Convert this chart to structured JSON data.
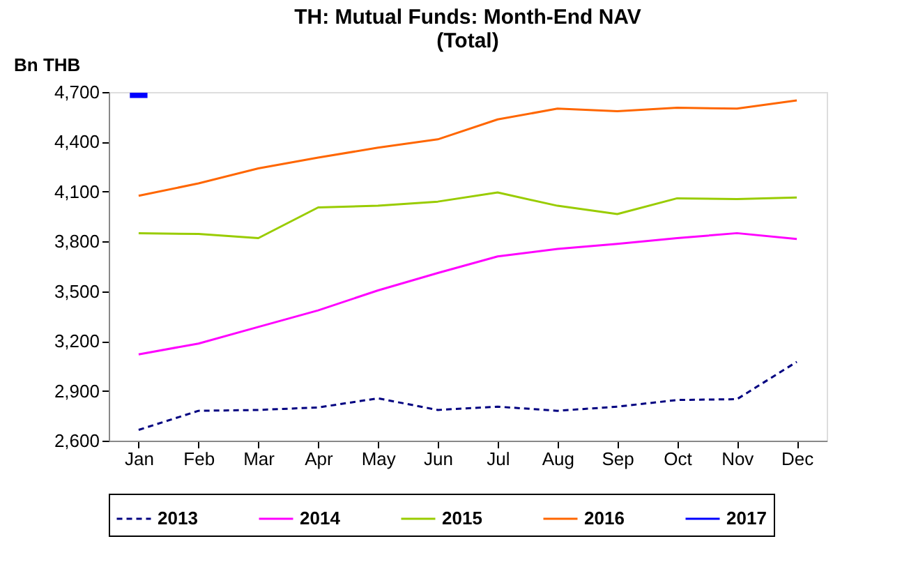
{
  "chart_data": {
    "type": "line",
    "title": [
      "TH: Mutual Funds: Month-End NAV",
      "(Total)"
    ],
    "ylabel": "Bn THB",
    "categories": [
      "Jan",
      "Feb",
      "Mar",
      "Apr",
      "May",
      "Jun",
      "Jul",
      "Aug",
      "Sep",
      "Oct",
      "Nov",
      "Dec"
    ],
    "ylim": [
      2600,
      4700
    ],
    "yticks": [
      {
        "value": 2600,
        "label": "2,600"
      },
      {
        "value": 2900,
        "label": "2,900"
      },
      {
        "value": 3200,
        "label": "3,200"
      },
      {
        "value": 3500,
        "label": "3,500"
      },
      {
        "value": 3800,
        "label": "3,800"
      },
      {
        "value": 4100,
        "label": "4,100"
      },
      {
        "value": 4400,
        "label": "4,400"
      },
      {
        "value": 4700,
        "label": "4,700"
      }
    ],
    "grid": false,
    "legend": "bottom",
    "marker": "none",
    "series": [
      {
        "name": "2013",
        "color": "#000080",
        "line_style": "dashed",
        "values": [
          2665,
          2780,
          2785,
          2800,
          2855,
          2785,
          2805,
          2780,
          2805,
          2845,
          2850,
          3075
        ]
      },
      {
        "name": "2014",
        "color": "#ff00ff",
        "line_style": "solid",
        "values": [
          3120,
          3185,
          3285,
          3385,
          3505,
          3610,
          3710,
          3755,
          3785,
          3820,
          3850,
          3815
        ]
      },
      {
        "name": "2015",
        "color": "#99cc00",
        "line_style": "solid",
        "values": [
          3850,
          3845,
          3820,
          4005,
          4015,
          4040,
          4095,
          4015,
          3965,
          4060,
          4055,
          4065
        ]
      },
      {
        "name": "2016",
        "color": "#ff6600",
        "line_style": "solid",
        "values": [
          4075,
          4150,
          4240,
          4305,
          4365,
          4415,
          4535,
          4600,
          4585,
          4605,
          4600,
          4650
        ]
      },
      {
        "name": "2017",
        "color": "#0000ff",
        "line_style": "solid",
        "marker": "square",
        "values": [
          4680,
          null,
          null,
          null,
          null,
          null,
          null,
          null,
          null,
          null,
          null,
          null
        ]
      }
    ]
  }
}
